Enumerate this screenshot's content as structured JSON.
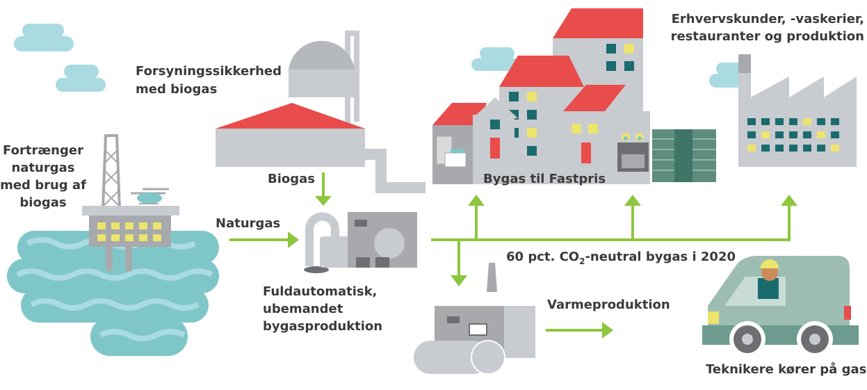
{
  "labels": {
    "supply": {
      "lines": [
        "Forsyningssikkerhed",
        "med biogas"
      ]
    },
    "displaces": {
      "lines": [
        "Fortrænger",
        "naturgas",
        "med brug af",
        "biogas"
      ]
    },
    "biogas": "Biogas",
    "natural_gas": "Naturgas",
    "automatic": {
      "lines": [
        "Fuldautomatisk,",
        "ubemandet",
        "bygasproduktion"
      ]
    },
    "fixed_price": "Bygas til Fastpris",
    "business": {
      "lines": [
        "Erhvervskunder, -vaskerier,",
        "restauranter og produktion"
      ]
    },
    "neutral": {
      "before": "60 pct. CO",
      "subscript": "2",
      "after": "-neutral bygas i 2020"
    },
    "heating": "Varmeproduktion",
    "technicians": "Teknikere kører på gas"
  }
}
